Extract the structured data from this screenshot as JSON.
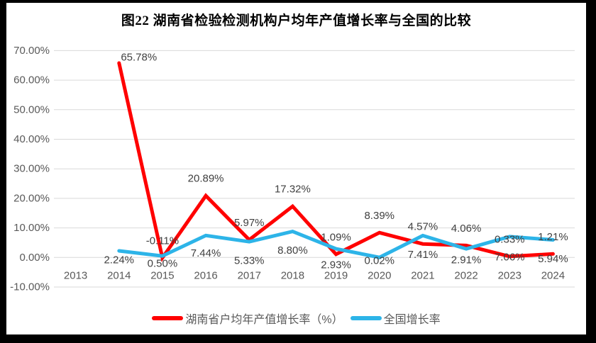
{
  "chart_data": {
    "type": "line",
    "title": "图22 湖南省检验检测机构户均年产值增长率与全国的比较",
    "categories": [
      "2013",
      "2014",
      "2015",
      "2016",
      "2017",
      "2018",
      "2019",
      "2020",
      "2021",
      "2022",
      "2023",
      "2024"
    ],
    "series": [
      {
        "name": "湖南省户均年产值增长率（%）",
        "color": "#FF0000",
        "values": [
          null,
          65.78,
          -0.11,
          20.89,
          5.97,
          17.32,
          1.09,
          8.39,
          4.57,
          4.06,
          0.33,
          1.21
        ],
        "labels": [
          null,
          "65.78%",
          "-0.11%",
          "20.89%",
          "5.97%",
          "17.32%",
          "1.09%",
          "8.39%",
          "4.57%",
          "4.06%",
          "0.33%",
          "1.21%"
        ]
      },
      {
        "name": "全国增长率",
        "color": "#2DB4E8",
        "values": [
          null,
          2.24,
          0.5,
          7.44,
          5.33,
          8.8,
          2.93,
          0.02,
          7.41,
          2.91,
          7.06,
          5.94
        ],
        "labels": [
          null,
          "2.24%",
          "0.50%",
          "7.44%",
          "5.33%",
          "8.80%",
          "2.93%",
          "0.02%",
          "7.41%",
          "2.91%",
          "7.06%",
          "5.94%"
        ]
      }
    ],
    "y_axis": {
      "min": -10,
      "max": 70,
      "step": 10,
      "tick_values": [
        70,
        60,
        50,
        40,
        30,
        20,
        10,
        0,
        -10
      ],
      "tick_labels": [
        "70.00%",
        "60.00%",
        "50.00%",
        "40.00%",
        "30.00%",
        "20.00%",
        "10.00%",
        "0.00%",
        "-10.00%"
      ]
    },
    "grid": true,
    "legend_position": "bottom",
    "colors": {
      "grid": "#D9D9D9",
      "tick_text": "#595959",
      "data_label_text": "#404040",
      "background": "#FFFFFF",
      "frame": "#000000"
    }
  }
}
